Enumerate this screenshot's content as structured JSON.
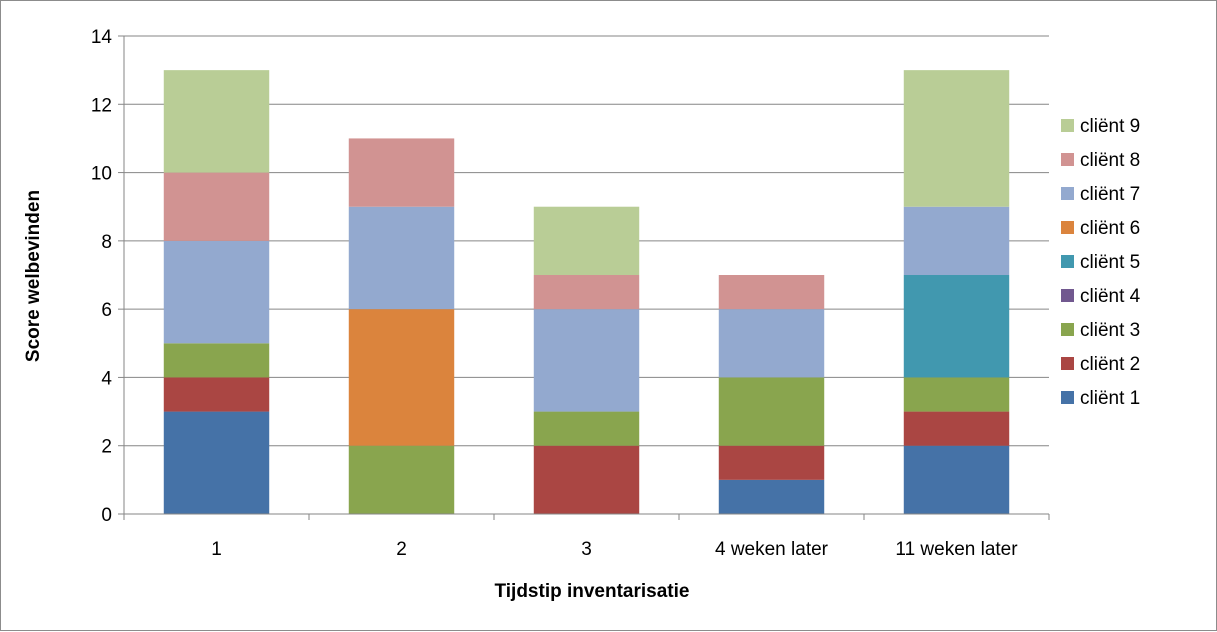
{
  "chart_data": {
    "type": "bar",
    "stacked": true,
    "categories": [
      "1",
      "2",
      "3",
      "4 weken later",
      "11 weken later"
    ],
    "xlabel": "Tijdstip inventarisatie",
    "ylabel": "Score welbevinden",
    "ylim": [
      0,
      14
    ],
    "yticks": [
      0,
      2,
      4,
      6,
      8,
      10,
      12,
      14
    ],
    "grid": true,
    "legend_position": "right",
    "series": [
      {
        "name": "cliënt 1",
        "color": "#4572a7",
        "values": [
          3,
          0,
          0,
          1,
          2
        ]
      },
      {
        "name": "cliënt 2",
        "color": "#aa4643",
        "values": [
          1,
          0,
          2,
          1,
          1
        ]
      },
      {
        "name": "cliënt 3",
        "color": "#89a54e",
        "values": [
          1,
          2,
          1,
          2,
          1
        ]
      },
      {
        "name": "cliënt 4",
        "color": "#71588f",
        "values": [
          0,
          0,
          0,
          0,
          0
        ]
      },
      {
        "name": "cliënt 5",
        "color": "#4198af",
        "values": [
          0,
          0,
          0,
          0,
          3
        ]
      },
      {
        "name": "cliënt 6",
        "color": "#db843d",
        "values": [
          0,
          4,
          0,
          0,
          0
        ]
      },
      {
        "name": "cliënt 7",
        "color": "#93a9cf",
        "values": [
          3,
          3,
          3,
          2,
          2
        ]
      },
      {
        "name": "cliënt 8",
        "color": "#d19392",
        "values": [
          2,
          2,
          1,
          1,
          0
        ]
      },
      {
        "name": "cliënt 9",
        "color": "#b9cd96",
        "values": [
          3,
          0,
          2,
          0,
          4
        ]
      }
    ]
  }
}
